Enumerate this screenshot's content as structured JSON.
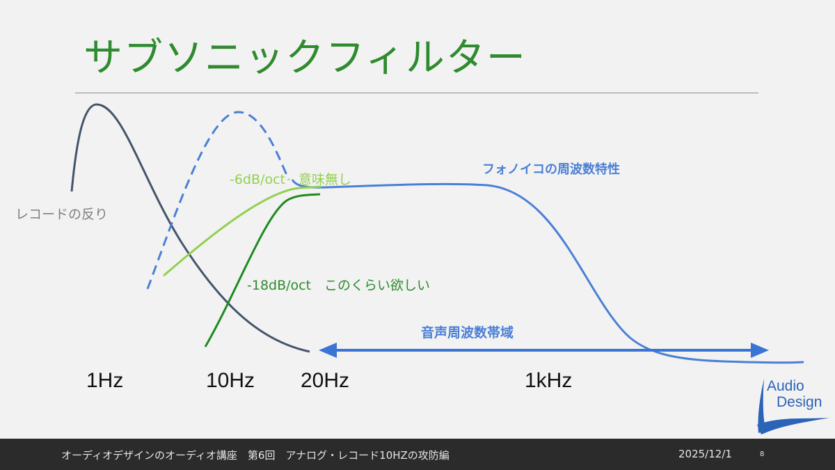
{
  "slide": {
    "title": "サブソニックフィルター"
  },
  "labels": {
    "record_warp": "レコードの反り",
    "six_db": "-6dB/oct　意味無し",
    "eighteen_db": "-18dB/oct　このくらい欲しい",
    "phono_eq": "フォノイコの周波数特性",
    "audio_band": "音声周波数帯域"
  },
  "frequencies": [
    "1Hz",
    "10Hz",
    "20Hz",
    "1kHz"
  ],
  "logo": {
    "line1": "Audio",
    "line2": "Design"
  },
  "footer": {
    "title": "オーディオデザインのオーディオ講座　第6回　アナログ・レコード10HZの攻防編",
    "date": "2025/12/1",
    "page": "8"
  },
  "colors": {
    "title_green": "#2e8b2e",
    "record_curve": "#44546a",
    "phono_blue": "#4a7fd6",
    "six_db_green": "#92d050",
    "eighteen_db_green": "#1e8a1e",
    "footer_bg": "#2b2b2b"
  }
}
